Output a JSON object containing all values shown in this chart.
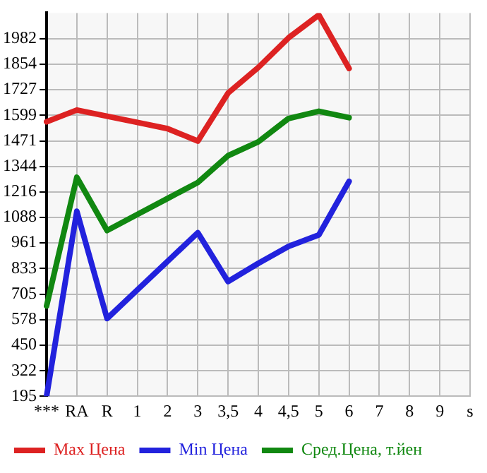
{
  "chart_data": {
    "type": "line",
    "categories": [
      "***",
      "RA",
      "R",
      "1",
      "2",
      "3",
      "3,5",
      "4",
      "4,5",
      "5",
      "6",
      "7",
      "8",
      "9",
      "s"
    ],
    "series": [
      {
        "name": "Max Цена",
        "color": "#dd2222",
        "values": [
          1566,
          1625,
          1594,
          1563,
          1532,
          1470,
          1710,
          1838,
          1986,
          2100,
          1833,
          null,
          null,
          null,
          null
        ]
      },
      {
        "name": "Min Цена",
        "color": "#2222dd",
        "values": [
          195,
          1119,
          583,
          726,
          869,
          1012,
          768,
          859,
          944,
          1001,
          1268,
          null,
          null,
          null,
          null
        ]
      },
      {
        "name": "Сред.Цена, т.йен",
        "color": "#118811",
        "values": [
          646,
          1289,
          1023,
          1103,
          1183,
          1263,
          1397,
          1466,
          1583,
          1619,
          1587,
          null,
          null,
          null,
          null
        ]
      }
    ],
    "ylim": [
      195,
      2110
    ],
    "yticks": [
      195,
      322,
      450,
      578,
      705,
      833,
      961,
      1088,
      1216,
      1344,
      1471,
      1599,
      1727,
      1854,
      1982
    ],
    "grid": true,
    "legend": "bottom",
    "marker": "none",
    "line_style": "solid"
  }
}
